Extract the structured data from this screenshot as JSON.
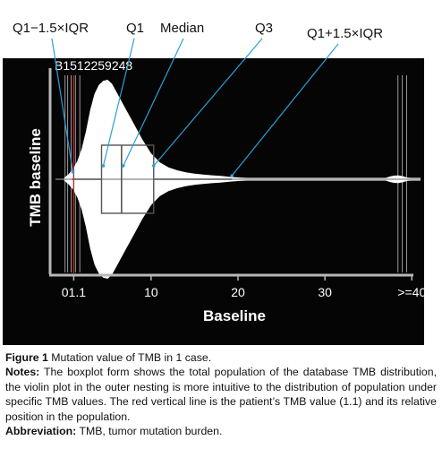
{
  "colors": {
    "panel": "#050505",
    "violin": "#ffffff",
    "box_stroke": "#555555",
    "patient_line": "#c81e1e",
    "percentile_lines": "#9a9a9a",
    "annotation_arrows": "#2a9fd8"
  },
  "chart_data": {
    "type": "violin",
    "title": "",
    "sample_label": "B1512259248",
    "xlabel": "Baseline",
    "ylabel": "TMB baseline",
    "xlim": [
      -1,
      41
    ],
    "ticks": [
      {
        "value": 1.1,
        "label": "01.1"
      },
      {
        "value": 10,
        "label": "10"
      },
      {
        "value": 20,
        "label": "20"
      },
      {
        "value": 30,
        "label": "30"
      },
      {
        "value": 40,
        "label": ">=40"
      }
    ],
    "box": {
      "q1": 4.3,
      "median": 6.6,
      "q3": 10.3,
      "whisker_low": 0.9,
      "whisker_high": 19.3
    },
    "patient_value": 1.1,
    "percentile_lines": [
      0.1,
      0.4,
      0.8,
      1.3,
      1.8,
      38.4,
      38.9,
      39.4
    ],
    "violin_profile": [
      [
        0.0,
        0.0
      ],
      [
        0.5,
        0.05
      ],
      [
        1.0,
        0.1
      ],
      [
        1.5,
        0.18
      ],
      [
        2.0,
        0.3
      ],
      [
        2.5,
        0.48
      ],
      [
        3.0,
        0.7
      ],
      [
        3.5,
        0.86
      ],
      [
        4.0,
        0.95
      ],
      [
        4.5,
        0.99
      ],
      [
        5.0,
        1.0
      ],
      [
        5.5,
        0.96
      ],
      [
        6.0,
        0.88
      ],
      [
        7.0,
        0.72
      ],
      [
        8.0,
        0.56
      ],
      [
        9.0,
        0.4
      ],
      [
        10.0,
        0.26
      ],
      [
        11.0,
        0.17
      ],
      [
        12.0,
        0.12
      ],
      [
        13.0,
        0.09
      ],
      [
        14.0,
        0.07
      ],
      [
        15.0,
        0.056
      ],
      [
        16.0,
        0.047
      ],
      [
        17.0,
        0.04
      ],
      [
        18.0,
        0.033
      ],
      [
        19.0,
        0.025
      ],
      [
        20.0,
        0.018
      ],
      [
        21.0,
        0.013
      ],
      [
        22.0,
        0.01
      ],
      [
        23.0,
        0.008
      ],
      [
        25.0,
        0.006
      ],
      [
        28.0,
        0.005
      ],
      [
        32.0,
        0.004
      ],
      [
        35.0,
        0.004
      ],
      [
        36.5,
        0.004
      ],
      [
        37.0,
        0.012
      ],
      [
        37.5,
        0.028
      ],
      [
        38.0,
        0.037
      ],
      [
        38.5,
        0.038
      ],
      [
        39.0,
        0.03
      ],
      [
        39.5,
        0.016
      ],
      [
        40.0,
        0.006
      ],
      [
        41.0,
        0.004
      ]
    ],
    "annotations": [
      {
        "label": "Q1−1.5×IQR",
        "points_to": "whisker_low"
      },
      {
        "label": "Q1",
        "points_to": "q1"
      },
      {
        "label": "Median",
        "points_to": "median"
      },
      {
        "label": "Q3",
        "points_to": "q3"
      },
      {
        "label": "Q1+1.5×IQR",
        "points_to": "whisker_high"
      }
    ]
  },
  "caption": {
    "figure_label": "Figure 1",
    "figure_text": "Mutation value of TMB in 1 case.",
    "notes_label": "Notes:",
    "notes_text": "The boxplot form shows the total population of the database TMB distribution, the violin plot in the outer nesting is more intuitive to the distribution of population under specific TMB values. The red vertical line is the patient’s TMB value (1.1) and its relative position in the population.",
    "abbreviation_label": "Abbreviation:",
    "abbreviation_text": "TMB, tumor mutation burden."
  }
}
